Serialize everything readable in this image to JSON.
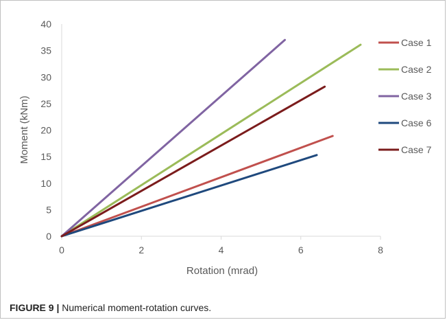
{
  "caption": {
    "label": "FIGURE 9 |",
    "text": "Numerical moment-rotation curves."
  },
  "chart_data": {
    "type": "line",
    "title": "",
    "xlabel": "Rotation (mrad)",
    "ylabel": "Moment (kNm)",
    "xlim": [
      0,
      8
    ],
    "ylim": [
      0,
      40
    ],
    "xticks": [
      0,
      2,
      4,
      6,
      8
    ],
    "yticks": [
      0,
      5,
      10,
      15,
      20,
      25,
      30,
      35,
      40
    ],
    "grid": false,
    "legend_position": "right",
    "series": [
      {
        "name": "Case 1",
        "color": "#c0504d",
        "x": [
          0,
          6.8
        ],
        "y": [
          0,
          18.9
        ]
      },
      {
        "name": "Case 2",
        "color": "#9bbb59",
        "x": [
          0,
          7.5
        ],
        "y": [
          0,
          36.1
        ]
      },
      {
        "name": "Case 3",
        "color": "#8064a2",
        "x": [
          0,
          5.6
        ],
        "y": [
          0,
          37.0
        ]
      },
      {
        "name": "Case 6",
        "color": "#1f497d",
        "x": [
          0,
          6.4
        ],
        "y": [
          0,
          15.3
        ]
      },
      {
        "name": "Case 7",
        "color": "#7b1c1c",
        "x": [
          0,
          6.6
        ],
        "y": [
          0,
          28.2
        ]
      }
    ]
  }
}
